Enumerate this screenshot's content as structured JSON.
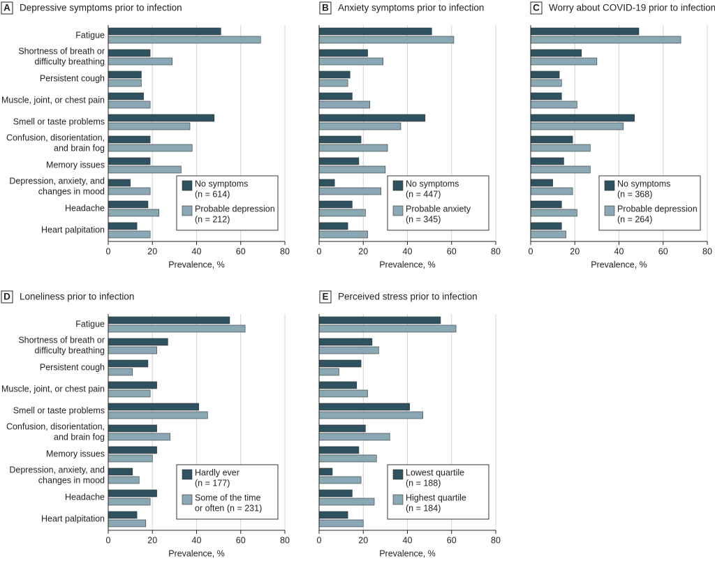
{
  "chart_data": [
    {
      "type": "bar",
      "orientation": "horizontal",
      "panel": "A",
      "title": "Depressive symptoms prior to infection",
      "categories": [
        "Fatigue",
        "Shortness of breath or\ndifficulty breathing",
        "Persistent cough",
        "Muscle, joint, or chest pain",
        "Smell or taste problems",
        "Confusion, disorientation,\nand brain fog",
        "Memory issues",
        "Depression, anxiety, and\nchanges in mood",
        "Headache",
        "Heart palpitation"
      ],
      "series": [
        {
          "name": "No symptoms\n(n = 614)",
          "color": "#2e5260",
          "values": [
            51,
            19,
            15,
            16,
            48,
            19,
            19,
            10,
            18,
            13
          ]
        },
        {
          "name": "Probable depression\n(n = 212)",
          "color": "#8aa8b4",
          "values": [
            69,
            29,
            15,
            19,
            37,
            38,
            33,
            19,
            23,
            19
          ]
        }
      ],
      "xlabel": "Prevalence, %",
      "xlim": [
        0,
        80
      ],
      "xticks": [
        0,
        20,
        40,
        60,
        80
      ],
      "grid": true,
      "legend": "lower right"
    },
    {
      "type": "bar",
      "orientation": "horizontal",
      "panel": "B",
      "title": "Anxiety symptoms prior to infection",
      "series": [
        {
          "name": "No symptoms\n(n = 447)",
          "color": "#2e5260",
          "values": [
            51,
            22,
            14,
            15,
            48,
            19,
            18,
            7,
            15,
            13
          ]
        },
        {
          "name": "Probable anxiety\n(n = 345)",
          "color": "#8aa8b4",
          "values": [
            61,
            29,
            13,
            23,
            37,
            31,
            30,
            28,
            21,
            22
          ]
        }
      ],
      "xlabel": "Prevalence, %",
      "xlim": [
        0,
        80
      ],
      "xticks": [
        0,
        20,
        40,
        60,
        80
      ],
      "grid": true,
      "legend": "lower right"
    },
    {
      "type": "bar",
      "orientation": "horizontal",
      "panel": "C",
      "title": "Worry about COVID-19 prior to infection",
      "series": [
        {
          "name": "No symptoms\n(n = 368)",
          "color": "#2e5260",
          "values": [
            49,
            23,
            13,
            14,
            47,
            19,
            15,
            10,
            14,
            14
          ]
        },
        {
          "name": "Probable depression\n(n = 264)",
          "color": "#8aa8b4",
          "values": [
            68,
            30,
            14,
            21,
            42,
            27,
            27,
            19,
            21,
            16
          ]
        }
      ],
      "xlabel": "Prevalence, %",
      "xlim": [
        0,
        80
      ],
      "xticks": [
        0,
        20,
        40,
        60,
        80
      ],
      "grid": true,
      "legend": "lower right"
    },
    {
      "type": "bar",
      "orientation": "horizontal",
      "panel": "D",
      "title": "Loneliness prior to infection",
      "categories": [
        "Fatigue",
        "Shortness of breath or\ndifficulty breathing",
        "Persistent cough",
        "Muscle, joint, or chest pain",
        "Smell or taste problems",
        "Confusion, disorientation,\nand brain fog",
        "Memory issues",
        "Depression, anxiety, and\nchanges in mood",
        "Headache",
        "Heart palpitation"
      ],
      "series": [
        {
          "name": "Hardly ever\n(n = 177)",
          "color": "#2e5260",
          "values": [
            55,
            27,
            18,
            22,
            41,
            22,
            22,
            11,
            22,
            13
          ]
        },
        {
          "name": "Some of the time\nor often (n = 231)",
          "color": "#8aa8b4",
          "values": [
            62,
            22,
            11,
            19,
            45,
            28,
            20,
            14,
            19,
            17
          ]
        }
      ],
      "xlabel": "Prevalence, %",
      "xlim": [
        0,
        80
      ],
      "xticks": [
        0,
        20,
        40,
        60,
        80
      ],
      "grid": true,
      "legend": "lower right"
    },
    {
      "type": "bar",
      "orientation": "horizontal",
      "panel": "E",
      "title": "Perceived stress prior to infection",
      "series": [
        {
          "name": "Lowest quartile\n(n = 188)",
          "color": "#2e5260",
          "values": [
            55,
            24,
            19,
            17,
            41,
            21,
            18,
            6,
            15,
            13
          ]
        },
        {
          "name": "Highest quartile\n(n = 184)",
          "color": "#8aa8b4",
          "values": [
            62,
            27,
            9,
            22,
            47,
            32,
            26,
            19,
            25,
            20
          ]
        }
      ],
      "xlabel": "Prevalence, %",
      "xlim": [
        0,
        80
      ],
      "xticks": [
        0,
        20,
        40,
        60,
        80
      ],
      "grid": true,
      "legend": "lower right"
    }
  ]
}
